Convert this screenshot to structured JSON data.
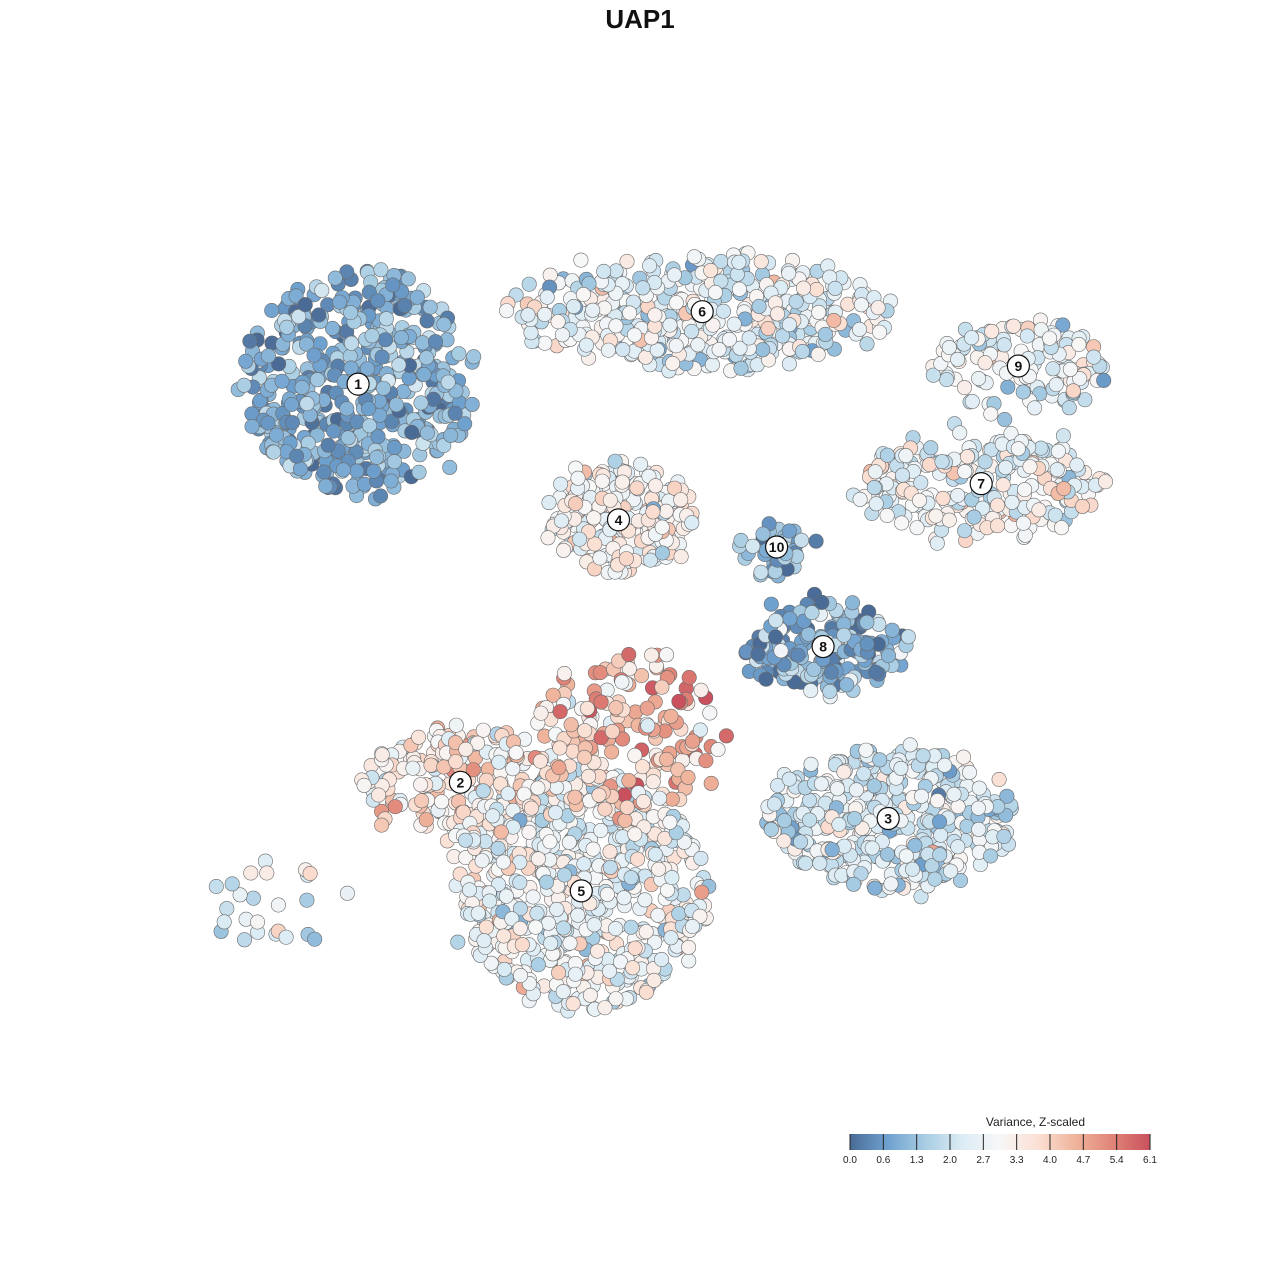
{
  "chart_data": {
    "type": "scatter",
    "title": "UAP1",
    "xlabel": "",
    "ylabel": "",
    "grid": false,
    "legend": {
      "title": "Variance, Z-scaled",
      "placement": "bottom-right",
      "ticks": [
        "0.0",
        "0.6",
        "1.3",
        "2.0",
        "2.7",
        "3.3",
        "4.0",
        "4.7",
        "5.4",
        "6.1"
      ],
      "range": [
        0.0,
        6.1
      ],
      "colors": [
        "#4a6b96",
        "#6fa1cf",
        "#a8cde3",
        "#dcecf5",
        "#f7f7f7",
        "#fbe0d4",
        "#f0b49c",
        "#e08478",
        "#c9505d"
      ]
    },
    "clusters": [
      {
        "label": "1",
        "x": 0.17,
        "y": 0.78,
        "mean": 1.0,
        "sd": 0.55,
        "n": 520
      },
      {
        "label": "2",
        "x": 0.28,
        "y": 0.34,
        "mean": 3.4,
        "sd": 0.7,
        "n": 210
      },
      {
        "label": "3",
        "x": 0.74,
        "y": 0.3,
        "mean": 2.3,
        "sd": 0.7,
        "n": 420
      },
      {
        "label": "4",
        "x": 0.45,
        "y": 0.63,
        "mean": 3.1,
        "sd": 0.7,
        "n": 240
      },
      {
        "label": "5",
        "x": 0.41,
        "y": 0.22,
        "mean": 2.8,
        "sd": 0.7,
        "n": 620
      },
      {
        "label": "6",
        "x": 0.54,
        "y": 0.86,
        "mean": 2.5,
        "sd": 0.7,
        "n": 430
      },
      {
        "label": "7",
        "x": 0.84,
        "y": 0.67,
        "mean": 2.8,
        "sd": 0.7,
        "n": 250
      },
      {
        "label": "8",
        "x": 0.67,
        "y": 0.49,
        "mean": 1.1,
        "sd": 0.8,
        "n": 180
      },
      {
        "label": "9",
        "x": 0.88,
        "y": 0.8,
        "mean": 2.6,
        "sd": 0.7,
        "n": 130
      },
      {
        "label": "10",
        "x": 0.62,
        "y": 0.6,
        "mean": 1.2,
        "sd": 0.6,
        "n": 45
      },
      {
        "label": "",
        "x": 0.46,
        "y": 0.39,
        "mean": 4.2,
        "sd": 0.9,
        "n": 180
      },
      {
        "label": "",
        "x": 0.08,
        "y": 0.2,
        "mean": 2.2,
        "sd": 0.9,
        "n": 25
      }
    ]
  }
}
